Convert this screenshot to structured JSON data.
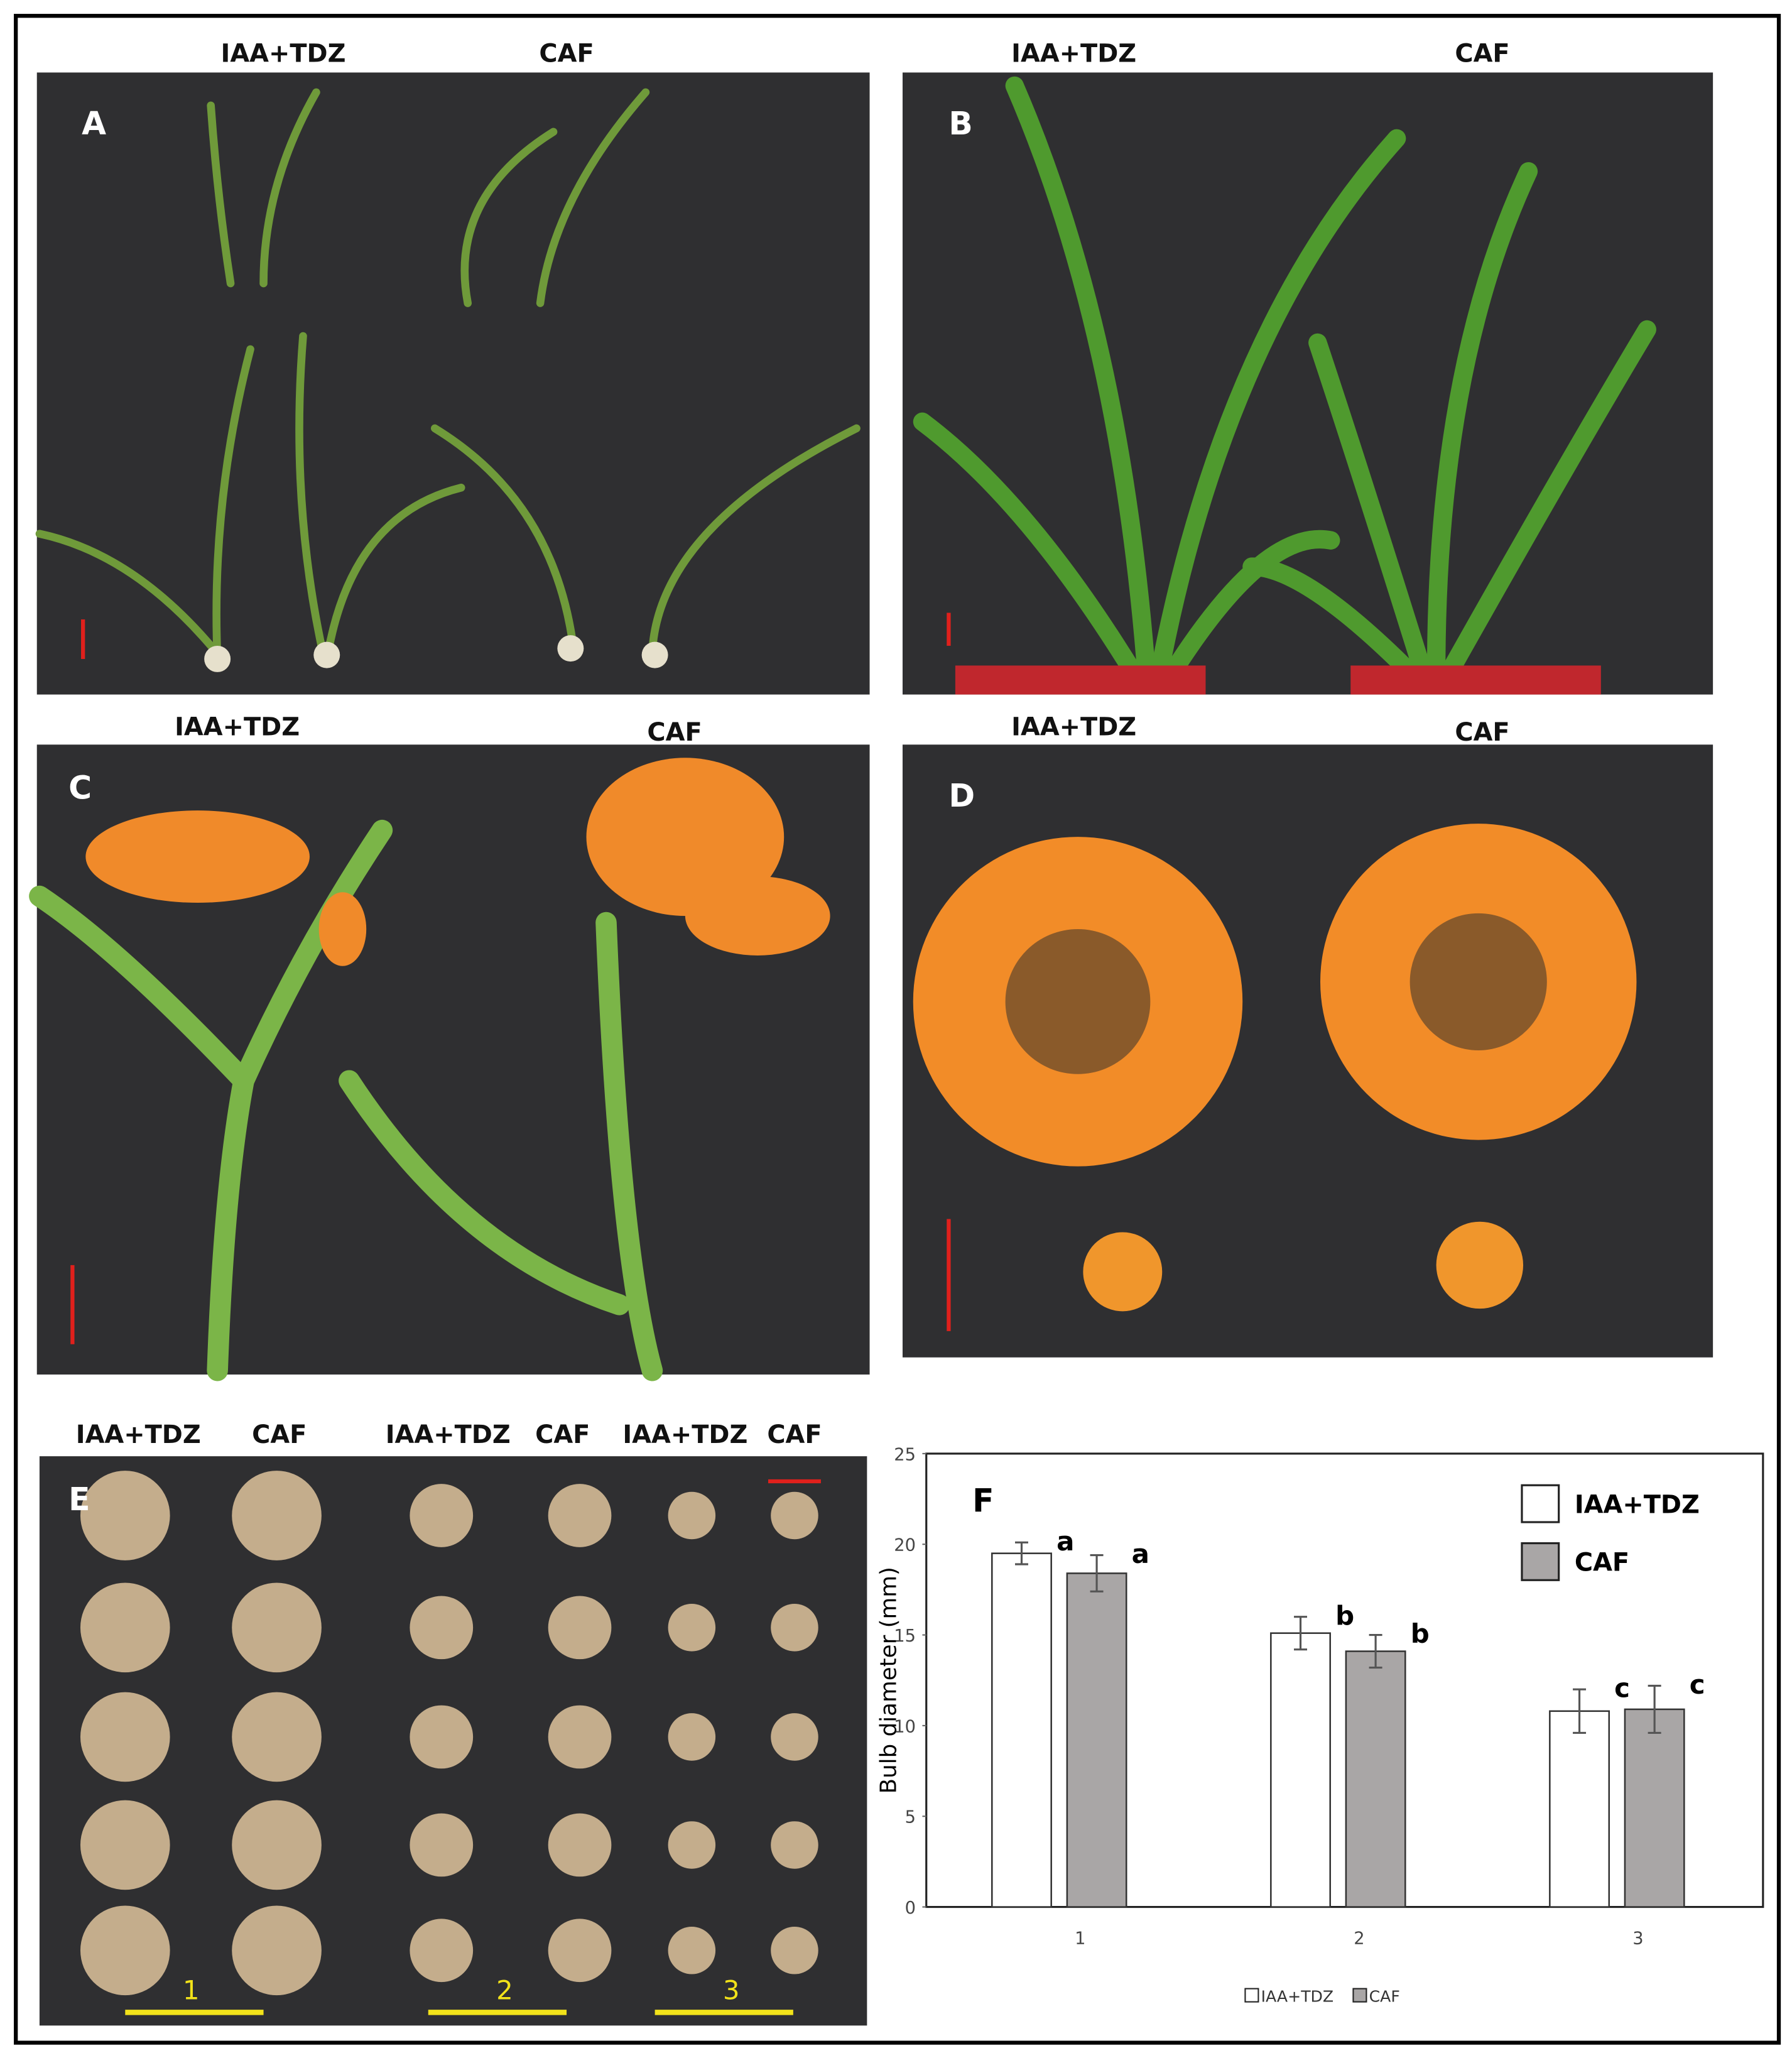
{
  "panels": [
    {
      "letter": "A",
      "labels": [
        "IAA+TDZ",
        "CAF"
      ]
    },
    {
      "letter": "B",
      "labels": [
        "IAA+TDZ",
        "CAF"
      ]
    },
    {
      "letter": "C",
      "labels": [
        "IAA+TDZ",
        "CAF"
      ]
    },
    {
      "letter": "D",
      "labels": [
        "IAA+TDZ",
        "CAF"
      ]
    },
    {
      "letter": "E",
      "labels": [
        "IAA+TDZ",
        "CAF",
        "IAA+TDZ",
        "CAF",
        "IAA+TDZ",
        "CAF"
      ],
      "group_labels": [
        "1",
        "2",
        "3"
      ]
    }
  ],
  "chart_data": {
    "type": "bar",
    "label": "F",
    "y_label": "Bulb diameter (mm)",
    "categories": [
      "1",
      "2",
      "3"
    ],
    "series": [
      {
        "name": "IAA+TDZ",
        "color": "#ffffff",
        "values": [
          19.5,
          15.1,
          10.8
        ],
        "errors": [
          0.6,
          0.9,
          1.2
        ],
        "letters": [
          "a",
          "b",
          "c"
        ]
      },
      {
        "name": "CAF",
        "color": "#a9a6a6",
        "values": [
          18.4,
          14.1,
          10.9
        ],
        "errors": [
          1.0,
          0.9,
          1.3
        ],
        "letters": [
          "a",
          "b",
          "c"
        ]
      }
    ],
    "ylim": [
      0,
      25
    ],
    "yticks": [
      0,
      5,
      10,
      15,
      20,
      25
    ],
    "legend": "upper right"
  }
}
